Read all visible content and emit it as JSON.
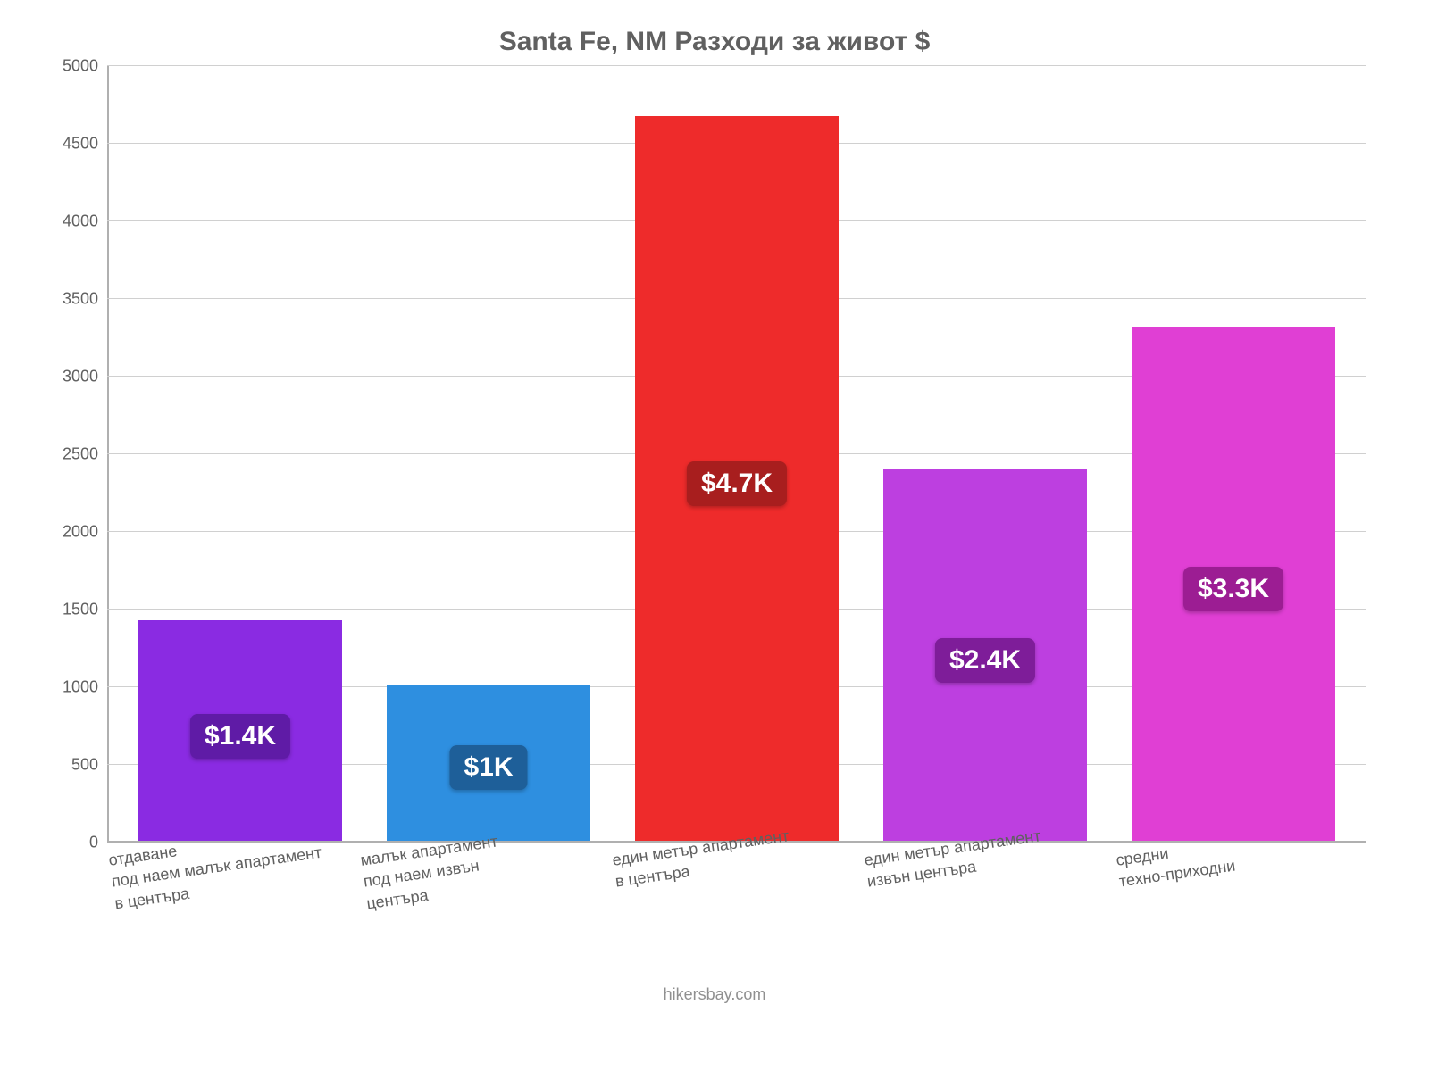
{
  "chart": {
    "type": "bar",
    "title": "Santa Fe, NM Разходи за живот $",
    "title_color": "#606060",
    "title_fontsize": 30,
    "background_color": "#ffffff",
    "grid_color": "#d0d0d0",
    "axis_color": "#b0b0b0",
    "label_color": "#606060",
    "label_fontsize": 18,
    "value_badge_fontsize": 30,
    "ylim": [
      0,
      5000
    ],
    "ytick_step": 500,
    "yticks": [
      0,
      500,
      1000,
      1500,
      2000,
      2500,
      3000,
      3500,
      4000,
      4500,
      5000
    ],
    "bar_width_ratio": 0.82,
    "bars": [
      {
        "category": "отдаване\nпод наем малък апартамент\nв центъра",
        "value": 1430,
        "value_label": "$1.4K",
        "bar_color": "#8a2be2",
        "badge_bg": "#5f1ba6",
        "badge_text_color": "#ffffff"
      },
      {
        "category": "малък апартамент\nпод наем извън\nцентъра",
        "value": 1020,
        "value_label": "$1K",
        "bar_color": "#2e8fe0",
        "badge_bg": "#1e5f99",
        "badge_text_color": "#ffffff"
      },
      {
        "category": "един метър апартамент\nв центъра",
        "value": 4680,
        "value_label": "$4.7K",
        "bar_color": "#ee2b2b",
        "badge_bg": "#a81e1e",
        "badge_text_color": "#ffffff"
      },
      {
        "category": "един метър апартамент\nизвън центъра",
        "value": 2400,
        "value_label": "$2.4K",
        "bar_color": "#bd3fe0",
        "badge_bg": "#7e1d99",
        "badge_text_color": "#ffffff"
      },
      {
        "category": "средни\nтехно-приходни",
        "value": 3320,
        "value_label": "$3.3K",
        "bar_color": "#e03fd4",
        "badge_bg": "#9c1d93",
        "badge_text_color": "#ffffff"
      }
    ],
    "attribution": "hikersbay.com",
    "attribution_color": "#909090"
  }
}
